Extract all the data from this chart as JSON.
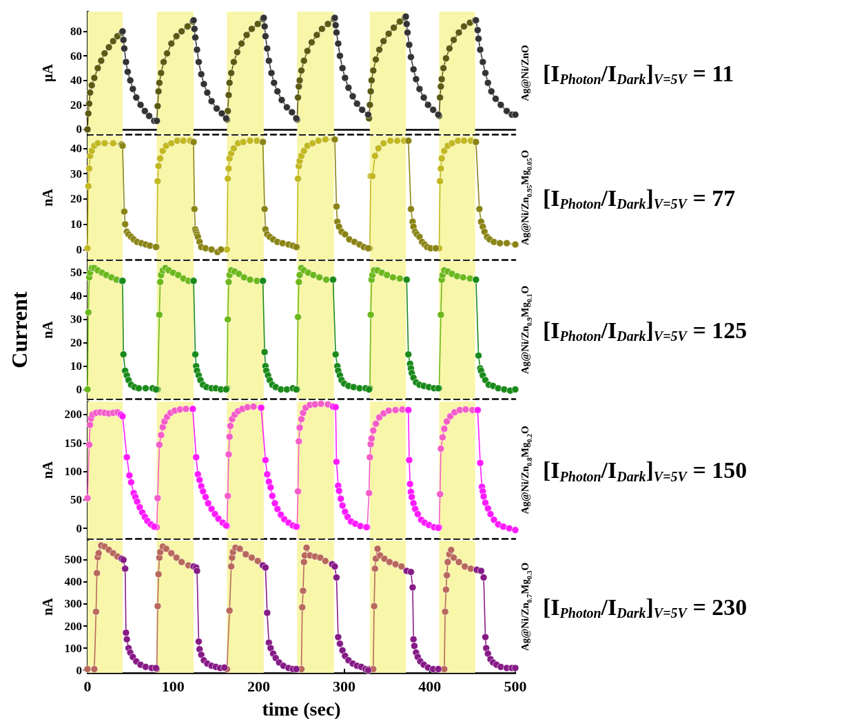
{
  "chart_data": [
    {
      "type": "line",
      "ylabel": "μA",
      "y2label": "Ag@Ni/ZnO",
      "annotations": [
        "[I$_{Photon}$/I$_{Dark}$]$_{V=5V}$ = 11"
      ],
      "xlim": [
        0,
        500
      ],
      "xticks": [
        0,
        100,
        200,
        300,
        400,
        500
      ],
      "ylim": [
        -4,
        96
      ],
      "yticks": [
        0,
        20,
        40,
        60,
        80
      ],
      "tick_labels": "y",
      "marker": "circle",
      "bands": [
        {
          "axis": "x",
          "from": 0,
          "to": 41,
          "color": "#f8f6a8"
        },
        {
          "axis": "x",
          "from": 81,
          "to": 124,
          "color": "#f8f6a8"
        },
        {
          "axis": "x",
          "from": 163,
          "to": 206,
          "color": "#f8f6a8"
        },
        {
          "axis": "x",
          "from": 245,
          "to": 288,
          "color": "#f8f6a8"
        },
        {
          "axis": "x",
          "from": 330,
          "to": 372,
          "color": "#f8f6a8"
        },
        {
          "axis": "x",
          "from": 411,
          "to": 453,
          "color": "#f8f6a8"
        }
      ],
      "series": [
        {
          "color": "#5c5a12",
          "x": [
            0,
            1,
            2,
            3,
            5,
            8,
            12,
            16,
            20,
            25,
            30,
            35,
            40,
            41,
            81,
            82,
            83,
            84,
            86,
            89,
            93,
            98,
            104,
            110,
            117,
            123,
            124,
            163,
            164,
            165,
            166,
            168,
            171,
            175,
            180,
            186,
            192,
            199,
            205,
            206,
            245,
            246,
            247,
            248,
            250,
            253,
            257,
            262,
            268,
            274,
            281,
            288,
            289,
            329,
            330,
            331,
            332,
            334,
            337,
            341,
            346,
            352,
            358,
            365,
            371,
            372,
            411,
            412,
            413,
            414,
            416,
            419,
            423,
            428,
            434,
            440,
            447,
            453
          ],
          "values": [
            0,
            13,
            21,
            30,
            36,
            42,
            50,
            56,
            62,
            67,
            72,
            76,
            79,
            null,
            7,
            19,
            31,
            38,
            46,
            55,
            62,
            70,
            76,
            80,
            84,
            88,
            null,
            8,
            15,
            28,
            38,
            46,
            55,
            63,
            70,
            77,
            82,
            86,
            90,
            null,
            8,
            26,
            35,
            40,
            48,
            56,
            64,
            71,
            77,
            82,
            86,
            90,
            null,
            9,
            20,
            31,
            40,
            48,
            57,
            65,
            72,
            78,
            83,
            88,
            91,
            null,
            11,
            26,
            35,
            41,
            50,
            58,
            66,
            73,
            79,
            84,
            87,
            89
          ]
        },
        {
          "color": "#333333",
          "x": [
            41,
            42,
            43,
            45,
            47,
            50,
            53,
            57,
            62,
            67,
            72,
            78,
            81,
            81.5,
            124,
            125,
            126,
            128,
            130,
            133,
            136,
            140,
            145,
            151,
            157,
            162,
            163,
            206,
            207,
            208,
            210,
            212,
            215,
            218,
            222,
            227,
            233,
            239,
            244,
            245,
            289,
            290,
            291,
            293,
            295,
            298,
            301,
            305,
            310,
            315,
            321,
            328,
            329,
            372,
            373,
            374,
            376,
            378,
            381,
            384,
            388,
            393,
            398,
            404,
            410,
            411,
            454,
            456,
            457,
            459,
            462,
            465,
            468,
            472,
            477,
            483,
            490,
            496,
            500
          ],
          "values": [
            80,
            73,
            66,
            55,
            47,
            40,
            33,
            26,
            20,
            15,
            11,
            7,
            7,
            null,
            89,
            82,
            75,
            65,
            55,
            45,
            37,
            30,
            23,
            17,
            13,
            9,
            null,
            91,
            84,
            76,
            66,
            56,
            46,
            38,
            31,
            24,
            18,
            14,
            9,
            null,
            91,
            85,
            79,
            70,
            60,
            50,
            42,
            34,
            27,
            21,
            16,
            12,
            null,
            92,
            86,
            79,
            69,
            59,
            49,
            41,
            33,
            26,
            20,
            16,
            12,
            null,
            89,
            81,
            74,
            65,
            55,
            46,
            38,
            31,
            25,
            20,
            15,
            12,
            12
          ]
        }
      ]
    },
    {
      "type": "line",
      "ylabel": "nA",
      "y2label": "Ag@Ni/Zn$_{0.95}$Mg$_{0.05}$O",
      "annotations": [
        "[I$_{Photon}$/I$_{Dark}$]$_{V=5V}$ = 77"
      ],
      "xlim": [
        0,
        500
      ],
      "xticks": [
        0,
        100,
        200,
        300,
        400,
        500
      ],
      "ylim": [
        -4,
        45
      ],
      "yticks": [
        0,
        10,
        20,
        30,
        40
      ],
      "tick_labels": "y",
      "marker": "circle",
      "bands": [
        {
          "axis": "x",
          "from": 0,
          "to": 41,
          "color": "#f8f6a8"
        },
        {
          "axis": "x",
          "from": 81,
          "to": 124,
          "color": "#f8f6a8"
        },
        {
          "axis": "x",
          "from": 163,
          "to": 206,
          "color": "#f8f6a8"
        },
        {
          "axis": "x",
          "from": 245,
          "to": 288,
          "color": "#f8f6a8"
        },
        {
          "axis": "x",
          "from": 330,
          "to": 372,
          "color": "#f8f6a8"
        },
        {
          "axis": "x",
          "from": 411,
          "to": 453,
          "color": "#f8f6a8"
        }
      ],
      "series": [
        {
          "color": "#c2b820",
          "x": [
            0,
            1,
            2,
            3,
            5,
            8,
            12,
            20,
            30,
            40,
            40.5,
            81,
            82,
            83,
            85,
            88,
            92,
            98,
            105,
            112,
            120,
            124,
            124.5,
            163,
            164,
            165,
            166,
            168,
            171,
            176,
            182,
            190,
            198,
            205,
            205.5,
            245,
            246,
            247,
            248,
            250,
            253,
            257,
            263,
            270,
            278,
            289,
            289.5,
            330,
            331,
            333,
            336,
            340,
            346,
            354,
            362,
            370,
            375,
            375.5,
            411,
            412,
            413,
            414,
            417,
            421,
            426,
            433,
            440,
            448,
            454
          ],
          "values": [
            0.5,
            25,
            32,
            37,
            39,
            41,
            42,
            42,
            42,
            41.5,
            null,
            1,
            27,
            33,
            36,
            39,
            41,
            42,
            43,
            43,
            43,
            42.5,
            null,
            0,
            28,
            32,
            36,
            38,
            40,
            42,
            42.5,
            43,
            43,
            42.5,
            null,
            1,
            28,
            33,
            35,
            37,
            39,
            41,
            42,
            43,
            43.5,
            43.5,
            null,
            0.5,
            29,
            29,
            37,
            40,
            42,
            43,
            43,
            43,
            43,
            null,
            0.5,
            27,
            32,
            36,
            39,
            41,
            42,
            43,
            43,
            43,
            42.5
          ]
        },
        {
          "color": "#8a8416",
          "x": [
            40,
            41,
            43,
            44,
            46,
            48,
            51,
            54,
            58,
            63,
            68,
            73,
            80,
            80.5,
            124,
            125,
            126,
            127,
            128,
            129,
            131,
            133,
            138,
            145,
            152,
            156,
            162.5,
            205,
            207,
            208,
            210,
            213,
            217,
            222,
            228,
            235,
            240,
            244,
            244.5,
            289,
            291,
            292,
            294,
            297,
            301,
            306,
            312,
            318,
            323,
            328,
            329,
            375,
            378,
            380,
            381,
            383,
            385,
            388,
            391,
            394,
            397,
            401,
            407,
            410,
            454,
            458,
            460,
            462,
            464,
            467,
            470,
            475,
            482,
            490,
            500
          ],
          "values": [
            41.5,
            41,
            15,
            10,
            7,
            6,
            5,
            4,
            3,
            2.5,
            2,
            1.5,
            1,
            null,
            42.5,
            16,
            8,
            7,
            6,
            5,
            3,
            1,
            0.5,
            0,
            -1,
            0,
            null,
            42.5,
            16,
            8,
            6,
            5,
            4,
            3,
            2.5,
            2,
            1.5,
            1,
            null,
            43.5,
            17,
            11,
            9,
            7,
            6,
            4,
            3,
            2,
            1,
            0.5,
            null,
            43,
            16,
            11,
            9,
            7,
            6,
            5,
            3,
            2,
            1,
            0.5,
            0.5,
            null,
            42.5,
            16,
            11,
            9,
            7,
            5,
            4,
            3,
            2.5,
            2.5,
            2
          ]
        }
      ]
    },
    {
      "type": "line",
      "ylabel": "nA",
      "y2label": "Ag@Ni/Zn$_{0.9}$Mg$_{0.1}$O",
      "annotations": [
        "[I$_{Photon}$/I$_{Dark}$]$_{V=5V}$ = 125",
        "Current"
      ],
      "xlim": [
        0,
        500
      ],
      "xticks": [
        0,
        100,
        200,
        300,
        400,
        500
      ],
      "ylim": [
        -4,
        55
      ],
      "yticks": [
        0,
        10,
        20,
        30,
        40,
        50
      ],
      "tick_labels": "y",
      "marker": "circle",
      "bands": [
        {
          "axis": "x",
          "from": 0,
          "to": 41,
          "color": "#f8f6a8"
        },
        {
          "axis": "x",
          "from": 81,
          "to": 124,
          "color": "#f8f6a8"
        },
        {
          "axis": "x",
          "from": 163,
          "to": 206,
          "color": "#f8f6a8"
        },
        {
          "axis": "x",
          "from": 245,
          "to": 288,
          "color": "#f8f6a8"
        },
        {
          "axis": "x",
          "from": 330,
          "to": 372,
          "color": "#f8f6a8"
        },
        {
          "axis": "x",
          "from": 411,
          "to": 453,
          "color": "#f8f6a8"
        }
      ],
      "series": [
        {
          "color": "#6cb81c",
          "x": [
            0,
            1,
            2,
            3,
            5,
            8,
            12,
            17,
            22,
            28,
            34,
            40,
            40.5,
            81,
            82,
            84,
            85,
            86,
            88,
            91,
            95,
            100,
            106,
            112,
            118,
            124,
            124.5,
            163,
            164,
            165,
            166,
            168,
            172,
            177,
            183,
            190,
            198,
            205,
            205.5,
            245,
            246,
            247,
            248,
            250,
            253,
            258,
            264,
            271,
            279,
            287,
            287.5,
            330,
            331,
            332,
            333,
            335,
            339,
            344,
            350,
            357,
            365,
            373,
            373.5,
            411,
            413,
            414,
            415,
            417,
            421,
            426,
            432,
            439,
            447,
            454
          ],
          "values": [
            0,
            33,
            48,
            50,
            52,
            52,
            51,
            50,
            49,
            48,
            47,
            46.5,
            null,
            0,
            0,
            32,
            46,
            49,
            51,
            52,
            51,
            50,
            49,
            47.5,
            46.5,
            46.5,
            null,
            0.5,
            30,
            46,
            49,
            51,
            50.5,
            49.5,
            48,
            47,
            46.5,
            46.5,
            null,
            0,
            31,
            46,
            49,
            52,
            51,
            50,
            49,
            48,
            47,
            47,
            null,
            0.5,
            32,
            47,
            49,
            51,
            51,
            50,
            49,
            48,
            47.5,
            47,
            null,
            0.5,
            32,
            47,
            49,
            51,
            50.5,
            49.5,
            48.5,
            48,
            47.5,
            47
          ]
        },
        {
          "color": "#1a8a1a",
          "x": [
            40,
            41,
            42,
            44,
            46,
            48,
            51,
            55,
            60,
            68,
            76,
            80,
            80.5,
            124,
            126,
            127,
            128,
            130,
            132,
            135,
            139,
            145,
            150,
            156,
            162,
            162.5,
            205,
            207,
            208,
            209,
            211,
            213,
            216,
            220,
            226,
            233,
            240,
            244,
            244.5,
            287,
            290,
            292,
            293,
            295,
            297,
            300,
            305,
            311,
            318,
            325,
            329,
            329.5,
            373,
            375,
            377,
            378,
            379,
            381,
            384,
            388,
            393,
            399,
            405,
            410,
            410.5,
            454,
            457,
            459,
            460,
            462,
            465,
            469,
            474,
            480,
            487,
            494,
            500
          ],
          "values": [
            46.5,
            46.5,
            15,
            8,
            6,
            4,
            2,
            1,
            0.5,
            0.5,
            0.5,
            0,
            null,
            46.5,
            15,
            10,
            8,
            6,
            4,
            2,
            1,
            0.5,
            0.5,
            0,
            0,
            null,
            46.5,
            16,
            10,
            8,
            6,
            4,
            2,
            1,
            0,
            0,
            0.5,
            0,
            null,
            47,
            15,
            10,
            8,
            6,
            4,
            2.5,
            1.5,
            1,
            0.5,
            0.5,
            0,
            null,
            47,
            15,
            11,
            9,
            7,
            5,
            3,
            2,
            1.5,
            1,
            0.5,
            0.5,
            null,
            47,
            14.5,
            9,
            8,
            6,
            4,
            2,
            1.5,
            0.5,
            0,
            -0.5,
            0
          ]
        }
      ]
    },
    {
      "type": "line",
      "ylabel": "nA",
      "y2label": "Ag@Ni/Zn$_{0.8}$Mg$_{0.2}$O",
      "annotations": [
        "[I$_{Photon}$/I$_{Dark}$]$_{V=5V}$ = 150"
      ],
      "xlim": [
        0,
        500
      ],
      "xticks": [
        0,
        100,
        200,
        300,
        400,
        500
      ],
      "ylim": [
        -18,
        223
      ],
      "yticks": [
        0,
        50,
        100,
        150,
        200
      ],
      "tick_labels": "y",
      "marker": "circle",
      "bands": [
        {
          "axis": "x",
          "from": 0,
          "to": 41,
          "color": "#f8f6a8"
        },
        {
          "axis": "x",
          "from": 81,
          "to": 124,
          "color": "#f8f6a8"
        },
        {
          "axis": "x",
          "from": 163,
          "to": 206,
          "color": "#f8f6a8"
        },
        {
          "axis": "x",
          "from": 245,
          "to": 288,
          "color": "#f8f6a8"
        },
        {
          "axis": "x",
          "from": 330,
          "to": 372,
          "color": "#f8f6a8"
        },
        {
          "axis": "x",
          "from": 411,
          "to": 453,
          "color": "#f8f6a8"
        }
      ],
      "series": [
        {
          "color": "#f45cc8",
          "x": [
            0,
            2,
            3,
            4,
            6,
            10,
            15,
            20,
            25,
            30,
            35,
            39,
            40,
            81,
            82,
            84,
            86,
            88,
            90,
            93,
            97,
            102,
            108,
            115,
            123,
            124,
            163,
            164,
            165,
            166,
            167,
            169,
            172,
            176,
            181,
            187,
            194,
            203,
            204,
            245,
            246,
            247,
            248,
            250,
            252,
            255,
            260,
            266,
            273,
            281,
            287,
            288,
            327,
            329,
            330,
            331,
            332,
            334,
            337,
            341,
            346,
            352,
            360,
            368,
            375,
            375.5,
            411,
            412,
            413,
            415,
            417,
            420,
            424,
            429,
            435,
            442,
            450,
            456
          ],
          "values": [
            53,
            147,
            182,
            193,
            200,
            203,
            204,
            203,
            202,
            203,
            204,
            200,
            null,
            2,
            53,
            147,
            164,
            178,
            188,
            196,
            203,
            207,
            209,
            210,
            210,
            null,
            4,
            57,
            130,
            161,
            180,
            192,
            200,
            206,
            210,
            213,
            214,
            212,
            null,
            3,
            65,
            153,
            177,
            192,
            203,
            212,
            217,
            218,
            219,
            218,
            214,
            null,
            2,
            62,
            125,
            148,
            158,
            172,
            184,
            195,
            202,
            207,
            208,
            209,
            208,
            null,
            2,
            60,
            140,
            160,
            175,
            188,
            197,
            204,
            208,
            209,
            208,
            208
          ]
        },
        {
          "color": "#ff1aff",
          "x": [
            39,
            41,
            46,
            49,
            51,
            54,
            56,
            58,
            61,
            64,
            67,
            70,
            74,
            78,
            80,
            123,
            127,
            129,
            131,
            133,
            135,
            138,
            141,
            145,
            149,
            153,
            158,
            162,
            162.5,
            203,
            208,
            210,
            212,
            214,
            216,
            219,
            222,
            226,
            230,
            235,
            240,
            244,
            244.5,
            287,
            290,
            291,
            293,
            294,
            296,
            298,
            301,
            304,
            308,
            313,
            319,
            326,
            326.5,
            375,
            376,
            377,
            378,
            379,
            381,
            383,
            386,
            390,
            394,
            399,
            405,
            410,
            410.5,
            456,
            459,
            461,
            462,
            463,
            465,
            468,
            471,
            475,
            480,
            486,
            493,
            500
          ],
          "values": [
            200,
            197,
            125,
            93,
            81,
            62,
            55,
            47,
            37,
            28,
            20,
            13,
            7,
            3,
            null,
            210,
            125,
            95,
            85,
            74,
            65,
            55,
            44,
            34,
            25,
            17,
            10,
            5,
            null,
            212,
            120,
            95,
            82,
            72,
            57,
            44,
            34,
            24,
            16,
            10,
            5,
            3,
            null,
            214,
            213,
            117,
            75,
            66,
            52,
            40,
            29,
            20,
            12,
            8,
            4,
            2,
            null,
            208,
            120,
            78,
            64,
            55,
            44,
            34,
            25,
            15,
            10,
            6,
            2,
            1,
            null,
            208,
            115,
            73,
            65,
            56,
            45,
            35,
            25,
            15,
            7,
            3,
            0,
            -3
          ]
        }
      ]
    },
    {
      "type": "line",
      "ylabel": "nA",
      "y2label": "Ag@Ni/Zn$_{0.7}$Mg$_{0.3}$O",
      "xlabel": "time (sec)",
      "annotations": [
        "[I$_{Photon}$/I$_{Dark}$]$_{V=5V}$ = 230"
      ],
      "xlim": [
        0,
        500
      ],
      "xticks": [
        0,
        100,
        200,
        300,
        400,
        500
      ],
      "ylim": [
        -12,
        587
      ],
      "yticks": [
        0,
        100,
        200,
        300,
        400,
        500
      ],
      "marker": "circle",
      "bands": [
        {
          "axis": "x",
          "from": 0,
          "to": 41,
          "color": "#f8f6a8"
        },
        {
          "axis": "x",
          "from": 81,
          "to": 124,
          "color": "#f8f6a8"
        },
        {
          "axis": "x",
          "from": 163,
          "to": 206,
          "color": "#f8f6a8"
        },
        {
          "axis": "x",
          "from": 245,
          "to": 288,
          "color": "#f8f6a8"
        },
        {
          "axis": "x",
          "from": 330,
          "to": 372,
          "color": "#f8f6a8"
        },
        {
          "axis": "x",
          "from": 411,
          "to": 453,
          "color": "#f8f6a8"
        }
      ],
      "series": [
        {
          "color": "#b8685c",
          "x": [
            0,
            8,
            10,
            11,
            12,
            13,
            16,
            20,
            25,
            30,
            35,
            40,
            41,
            81,
            82,
            83,
            84,
            85,
            88,
            92,
            98,
            104,
            110,
            118,
            124,
            125,
            163,
            166,
            168,
            169,
            170,
            173,
            178,
            185,
            192,
            199,
            205,
            206,
            245,
            250,
            251,
            252,
            253,
            254,
            256,
            260,
            266,
            272,
            278,
            286,
            287,
            329,
            334,
            335,
            336,
            337,
            339,
            342,
            347,
            353,
            360,
            367,
            373,
            374,
            411,
            417,
            418,
            419,
            420,
            421,
            423,
            425,
            428,
            434,
            441,
            448,
            455
          ],
          "values": [
            5,
            5,
            265,
            440,
            512,
            530,
            565,
            560,
            545,
            530,
            515,
            505,
            null,
            5,
            290,
            435,
            510,
            535,
            560,
            550,
            530,
            510,
            490,
            475,
            470,
            null,
            5,
            270,
            470,
            510,
            535,
            555,
            550,
            525,
            510,
            495,
            475,
            null,
            5,
            5,
            285,
            360,
            490,
            520,
            555,
            520,
            515,
            510,
            495,
            480,
            null,
            5,
            5,
            290,
            460,
            505,
            550,
            520,
            505,
            490,
            480,
            470,
            450,
            null,
            5,
            5,
            265,
            365,
            430,
            490,
            525,
            545,
            510,
            490,
            470,
            460,
            455
          ]
        },
        {
          "color": "#861a86",
          "x": [
            40,
            42,
            44,
            45,
            46,
            48,
            50,
            53,
            57,
            62,
            68,
            75,
            80,
            80.5,
            124,
            127,
            128,
            130,
            131,
            133,
            136,
            140,
            145,
            150,
            155,
            160,
            162,
            205,
            208,
            210,
            212,
            214,
            217,
            220,
            224,
            229,
            235,
            240,
            244,
            244.5,
            286,
            289,
            291,
            293,
            295,
            298,
            301,
            305,
            310,
            315,
            320,
            325,
            328,
            328.5,
            373,
            378,
            380,
            381,
            382,
            384,
            386,
            389,
            393,
            398,
            404,
            410,
            410.5,
            455,
            460,
            463,
            465,
            466,
            468,
            471,
            474,
            478,
            483,
            490,
            496,
            500
          ],
          "values": [
            505,
            500,
            460,
            170,
            140,
            100,
            80,
            60,
            40,
            25,
            15,
            10,
            10,
            null,
            470,
            465,
            450,
            130,
            95,
            70,
            45,
            30,
            20,
            15,
            10,
            12,
            null,
            475,
            465,
            260,
            125,
            100,
            75,
            55,
            35,
            20,
            10,
            5,
            5,
            null,
            480,
            470,
            420,
            150,
            120,
            90,
            65,
            45,
            30,
            20,
            15,
            5,
            0,
            null,
            450,
            445,
            375,
            140,
            110,
            80,
            60,
            40,
            25,
            12,
            5,
            5,
            null,
            455,
            450,
            420,
            150,
            100,
            75,
            50,
            35,
            25,
            15,
            10,
            10,
            10
          ]
        }
      ]
    }
  ]
}
